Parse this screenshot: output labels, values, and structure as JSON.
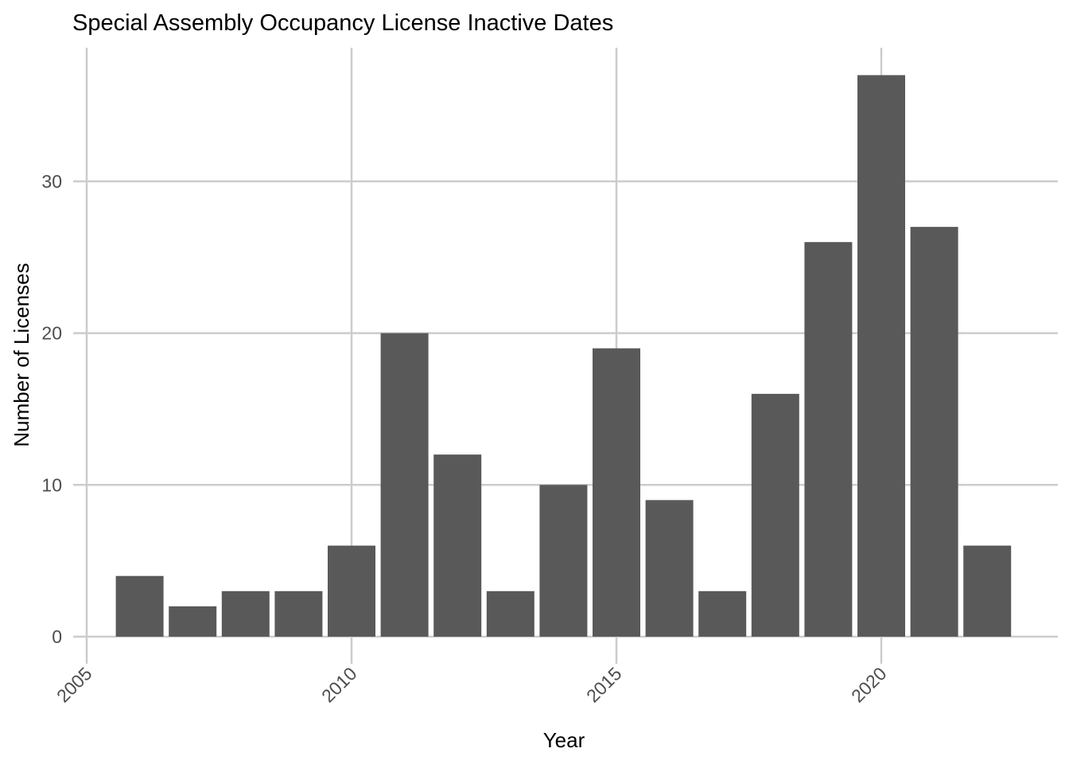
{
  "chart_data": {
    "type": "bar",
    "title": "Special Assembly Occupancy License Inactive Dates",
    "xlabel": "Year",
    "ylabel": "Number of Licenses",
    "x": [
      2006,
      2007,
      2008,
      2009,
      2010,
      2011,
      2012,
      2013,
      2014,
      2015,
      2016,
      2017,
      2018,
      2019,
      2020,
      2021,
      2022
    ],
    "values": [
      4,
      2,
      3,
      3,
      6,
      20,
      12,
      3,
      10,
      19,
      9,
      3,
      16,
      26,
      37,
      27,
      6
    ],
    "xticks": [
      "2005",
      "2010",
      "2015",
      "2020"
    ],
    "yticks": [
      "0",
      "10",
      "20",
      "30"
    ],
    "xlim": [
      2005,
      2023.3
    ],
    "ylim": [
      0,
      40.2
    ],
    "bar_color": "#595959",
    "grid_color": "#cccccc",
    "grid": true,
    "legend": "none"
  }
}
